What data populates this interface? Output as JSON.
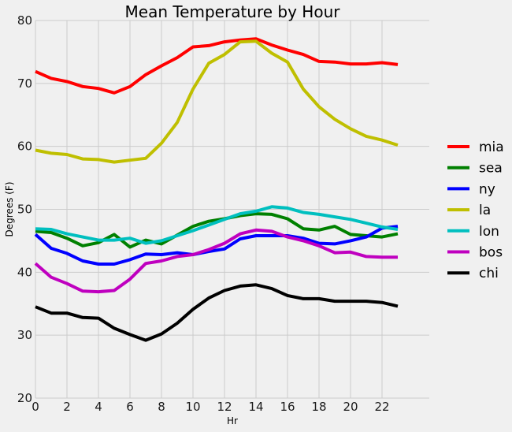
{
  "chart_data": {
    "type": "line",
    "title": "Mean Temperature by Hour",
    "xlabel": "Hr",
    "ylabel": "Degrees (F)",
    "xlim": [
      0,
      25
    ],
    "ylim": [
      20,
      80
    ],
    "xticks": [
      0,
      2,
      4,
      6,
      8,
      10,
      12,
      14,
      16,
      18,
      20,
      22
    ],
    "yticks": [
      20,
      30,
      40,
      50,
      60,
      70,
      80
    ],
    "grid": true,
    "legend": "right",
    "x": [
      0,
      1,
      2,
      3,
      4,
      5,
      6,
      7,
      8,
      9,
      10,
      11,
      12,
      13,
      14,
      15,
      16,
      17,
      18,
      19,
      20,
      21,
      22,
      23
    ],
    "series": [
      {
        "name": "mia",
        "color": "#ff0000",
        "values": [
          71.9,
          70.8,
          70.3,
          69.5,
          69.2,
          68.5,
          69.5,
          71.4,
          72.8,
          74.1,
          75.8,
          76.0,
          76.6,
          76.9,
          77.1,
          76.1,
          75.3,
          74.6,
          73.5,
          73.4,
          73.1,
          73.1,
          73.3,
          73.0
        ]
      },
      {
        "name": "sea",
        "color": "#008000",
        "values": [
          46.5,
          46.3,
          45.4,
          44.2,
          44.7,
          46.0,
          44.0,
          45.1,
          44.5,
          45.9,
          47.3,
          48.1,
          48.5,
          49.0,
          49.3,
          49.2,
          48.5,
          46.9,
          46.7,
          47.3,
          46.0,
          45.8,
          45.6,
          46.1
        ]
      },
      {
        "name": "ny",
        "color": "#0000ff",
        "values": [
          46.0,
          43.8,
          43.0,
          41.8,
          41.3,
          41.3,
          42.0,
          42.9,
          42.8,
          43.1,
          42.8,
          43.3,
          43.7,
          45.3,
          45.8,
          45.8,
          45.8,
          45.4,
          44.6,
          44.5,
          45.0,
          45.6,
          47.0,
          47.3
        ]
      },
      {
        "name": "la",
        "color": "#bfbf00",
        "values": [
          59.4,
          58.9,
          58.7,
          58.0,
          57.9,
          57.5,
          57.8,
          58.1,
          60.5,
          63.8,
          69.1,
          73.2,
          74.6,
          76.6,
          76.7,
          74.8,
          73.4,
          69.1,
          66.3,
          64.3,
          62.8,
          61.6,
          61.0,
          60.2
        ]
      },
      {
        "name": "lon",
        "color": "#00bfbf",
        "values": [
          46.9,
          46.8,
          46.1,
          45.6,
          45.1,
          45.1,
          45.4,
          44.6,
          45.0,
          45.8,
          46.6,
          47.5,
          48.4,
          49.3,
          49.7,
          50.4,
          50.2,
          49.5,
          49.2,
          48.8,
          48.4,
          47.8,
          47.2,
          46.8
        ]
      },
      {
        "name": "bos",
        "color": "#bf00bf",
        "values": [
          41.4,
          39.2,
          38.2,
          37.0,
          36.9,
          37.1,
          38.9,
          41.4,
          41.8,
          42.5,
          42.8,
          43.6,
          44.6,
          46.1,
          46.7,
          46.5,
          45.6,
          45.0,
          44.2,
          43.1,
          43.2,
          42.5,
          42.4,
          42.4
        ]
      },
      {
        "name": "chi",
        "color": "#000000",
        "values": [
          34.5,
          33.5,
          33.5,
          32.8,
          32.7,
          31.1,
          30.1,
          29.2,
          30.2,
          31.9,
          34.1,
          35.9,
          37.1,
          37.8,
          38.0,
          37.4,
          36.3,
          35.8,
          35.8,
          35.4,
          35.4,
          35.4,
          35.2,
          34.6
        ]
      }
    ]
  }
}
